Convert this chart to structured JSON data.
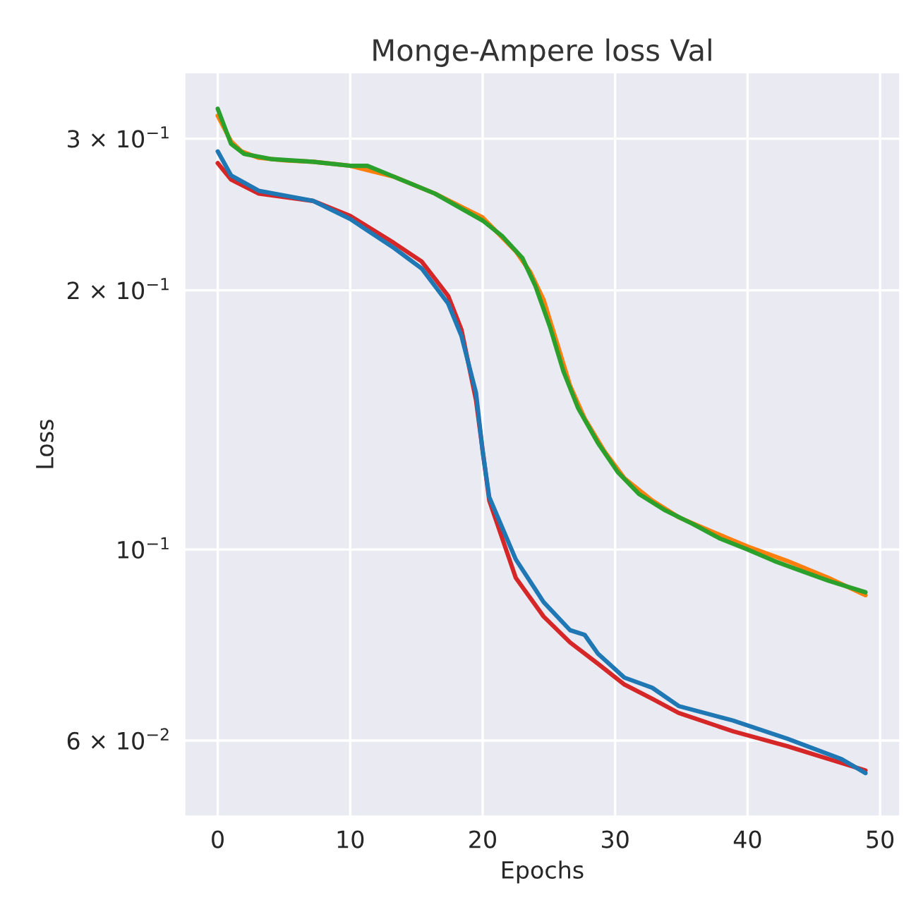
{
  "chart_data": {
    "type": "line",
    "title": "Monge-Ampere loss Val",
    "xlabel": "Epochs",
    "ylabel": "Loss",
    "log": "y",
    "xlim": [
      -2.5,
      51.5
    ],
    "xticks": [
      0,
      10,
      20,
      30,
      40,
      50
    ],
    "ylim": [
      0.049,
      0.358
    ],
    "yticks": [
      {
        "value": 0.3,
        "label": "3 × 10$^{−1}$"
      },
      {
        "value": 0.2,
        "label": "2 × 10$^{−1}$"
      },
      {
        "value": 0.1,
        "label": "10$^{−1}$"
      },
      {
        "value": 0.06,
        "label": "6 × 10$^{−2}$"
      }
    ],
    "grid": true,
    "line_style": "solid",
    "marker": "none",
    "series": [
      {
        "color": "#ff7f0e",
        "x": [
          0,
          1,
          1.8,
          3.1,
          5.1,
          7.2,
          10,
          13.3,
          16.4,
          20,
          22.5,
          23.6,
          24.6,
          25.6,
          26.6,
          27.7,
          29.2,
          30.7,
          32.8,
          34.8,
          37.9,
          40,
          43,
          46.1,
          48.9
        ],
        "values": [
          0.319,
          0.298,
          0.29,
          0.285,
          0.283,
          0.282,
          0.279,
          0.271,
          0.259,
          0.243,
          0.222,
          0.21,
          0.195,
          0.174,
          0.155,
          0.142,
          0.13,
          0.121,
          0.114,
          0.109,
          0.104,
          0.1008,
          0.097,
          0.0927,
          0.0885
        ]
      },
      {
        "color": "#2ca02c",
        "x": [
          0,
          1,
          2,
          4.1,
          7.2,
          10,
          11.3,
          13.3,
          16.4,
          20,
          21.5,
          23,
          24,
          25.1,
          26.1,
          27.2,
          28.7,
          30.2,
          31.8,
          33.8,
          35.9,
          37.9,
          40,
          42,
          44,
          46.1,
          48.9
        ],
        "values": [
          0.325,
          0.296,
          0.288,
          0.284,
          0.282,
          0.279,
          0.279,
          0.271,
          0.259,
          0.241,
          0.231,
          0.218,
          0.202,
          0.181,
          0.161,
          0.146,
          0.133,
          0.123,
          0.116,
          0.111,
          0.107,
          0.103,
          0.1,
          0.097,
          0.0945,
          0.092,
          0.0892
        ]
      },
      {
        "color": "#d62728",
        "x": [
          0,
          1,
          3.1,
          7.2,
          10,
          13.3,
          15.4,
          17.4,
          18.4,
          19.5,
          20.5,
          22.5,
          24.6,
          26.6,
          28.7,
          30.7,
          32.8,
          34.8,
          38.9,
          43,
          47.1,
          48.9
        ],
        "values": [
          0.281,
          0.269,
          0.259,
          0.254,
          0.244,
          0.227,
          0.216,
          0.197,
          0.18,
          0.149,
          0.114,
          0.0927,
          0.0836,
          0.078,
          0.0737,
          0.0697,
          0.0671,
          0.0646,
          0.0615,
          0.0591,
          0.0565,
          0.0554
        ]
      },
      {
        "color": "#1f77b4",
        "x": [
          0,
          1,
          3.1,
          7.2,
          10,
          13.3,
          15.4,
          17.4,
          18.4,
          19.5,
          20,
          20.5,
          22.5,
          24.6,
          26.6,
          27.7,
          28.7,
          30.7,
          32.8,
          34.8,
          38.9,
          43,
          47.1,
          48.9
        ],
        "values": [
          0.29,
          0.272,
          0.261,
          0.254,
          0.242,
          0.224,
          0.212,
          0.193,
          0.177,
          0.152,
          0.13,
          0.115,
          0.0974,
          0.0869,
          0.0806,
          0.0796,
          0.0757,
          0.071,
          0.0691,
          0.0658,
          0.0633,
          0.0603,
          0.0571,
          0.055
        ]
      }
    ]
  }
}
